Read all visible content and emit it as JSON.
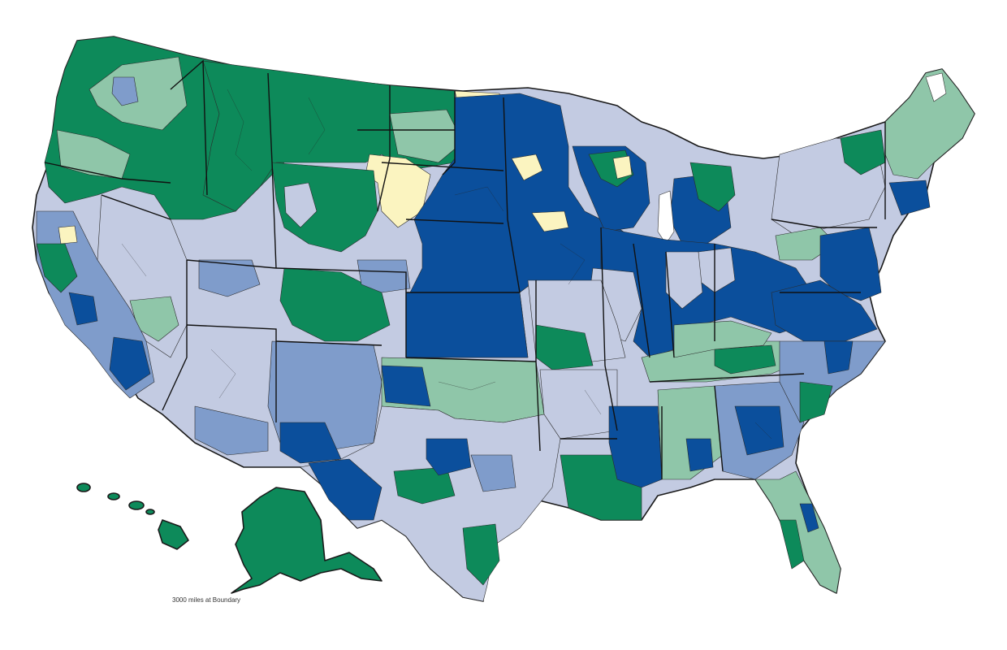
{
  "map": {
    "scale_note": "3000 miles at Boundary",
    "colors": {
      "class_1": "#fbf4c0",
      "class_2": "#c3cbe2",
      "class_3": "#7f9ccb",
      "class_4": "#0b4f9c",
      "class_5": "#8fc6a9",
      "class_6": "#0d8a5a",
      "outline": "#1a1a1a"
    }
  }
}
